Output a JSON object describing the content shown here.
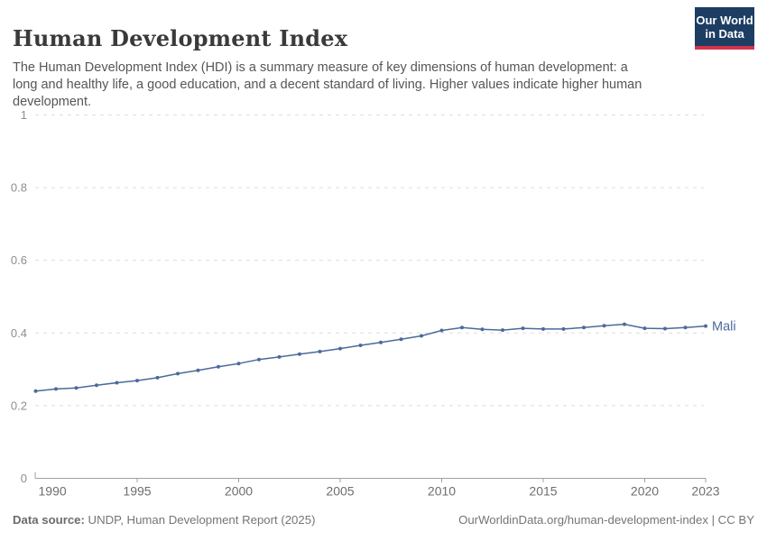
{
  "header": {
    "title": "Human Development Index",
    "subtitle": "The Human Development Index (HDI) is a summary measure of key dimensions of human development: a long and healthy life, a good education, and a decent standard of living. Higher values indicate higher human development.",
    "logo": {
      "line1": "Our World",
      "line2": "in Data",
      "bg_color": "#1d3d63",
      "accent_color": "#d5344c"
    }
  },
  "chart_data": {
    "type": "line",
    "title": "Human Development Index",
    "xlabel": "",
    "ylabel": "",
    "xlim": [
      1990,
      2023
    ],
    "ylim": [
      0,
      1
    ],
    "xticks": [
      1990,
      1995,
      2000,
      2005,
      2010,
      2015,
      2020,
      2023
    ],
    "yticks": [
      0,
      0.2,
      0.4,
      0.6,
      0.8,
      1
    ],
    "ytick_labels": [
      "0",
      "0.2",
      "0.4",
      "0.6",
      "0.8",
      "1"
    ],
    "grid": "horizontal-dashed",
    "legend_position": "line-end-label",
    "series": [
      {
        "name": "Mali",
        "color": "#4c6a9c",
        "x": [
          1990,
          1991,
          1992,
          1993,
          1994,
          1995,
          1996,
          1997,
          1998,
          1999,
          2000,
          2001,
          2002,
          2003,
          2004,
          2005,
          2006,
          2007,
          2008,
          2009,
          2010,
          2011,
          2012,
          2013,
          2014,
          2015,
          2016,
          2017,
          2018,
          2019,
          2020,
          2021,
          2022,
          2023
        ],
        "values": [
          0.24,
          0.246,
          0.249,
          0.256,
          0.263,
          0.269,
          0.277,
          0.288,
          0.297,
          0.307,
          0.316,
          0.327,
          0.334,
          0.342,
          0.349,
          0.357,
          0.366,
          0.374,
          0.383,
          0.392,
          0.407,
          0.415,
          0.41,
          0.408,
          0.413,
          0.411,
          0.411,
          0.415,
          0.42,
          0.424,
          0.413,
          0.412,
          0.415,
          0.419
        ]
      }
    ]
  },
  "footer": {
    "source_label": "Data source:",
    "source_text": " UNDP, Human Development Report (2025)",
    "link_text": "OurWorldinData.org/human-development-index | CC BY"
  },
  "colors": {
    "line": "#4c6a9c",
    "grid": "#dcdcdc",
    "axis": "#a0a0a0",
    "tick_label_y": "#8e8e8e",
    "tick_label_x": "#6e6e6e",
    "title": "#3a3a3a",
    "subtitle": "#565656",
    "footer": "#757575"
  }
}
